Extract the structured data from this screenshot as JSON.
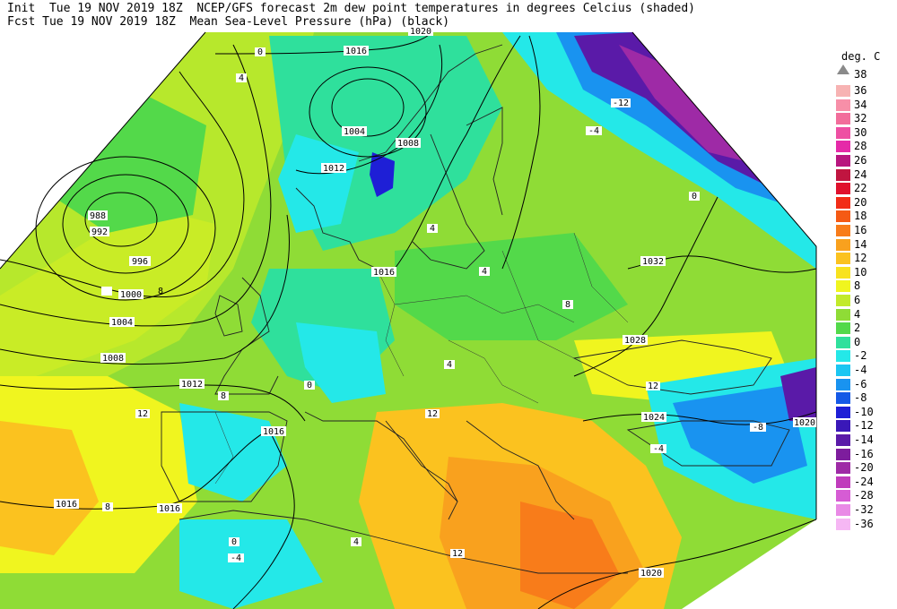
{
  "header": {
    "line1": "Init  Tue 19 NOV 2019 18Z  NCEP/GFS forecast 2m dew point temperatures in degrees Celcius (shaded)",
    "line2": "Fcst Tue 19 NOV 2019 18Z  Mean Sea-Level Pressure (hPa) (black)"
  },
  "legend": {
    "unit": "deg. C",
    "top_value": "38",
    "items": [
      {
        "label": "36",
        "color": "#f7b3b3"
      },
      {
        "label": "34",
        "color": "#f78fa8"
      },
      {
        "label": "32",
        "color": "#f26d9b"
      },
      {
        "label": "30",
        "color": "#ee4fa3"
      },
      {
        "label": "28",
        "color": "#e52aa8"
      },
      {
        "label": "26",
        "color": "#b8167f"
      },
      {
        "label": "24",
        "color": "#c01540"
      },
      {
        "label": "22",
        "color": "#e0112d"
      },
      {
        "label": "20",
        "color": "#f22d17"
      },
      {
        "label": "18",
        "color": "#f55a14"
      },
      {
        "label": "16",
        "color": "#f87c1a"
      },
      {
        "label": "14",
        "color": "#f9a11e"
      },
      {
        "label": "12",
        "color": "#fbc21f"
      },
      {
        "label": "10",
        "color": "#f8e21e"
      },
      {
        "label": "8",
        "color": "#f0f51f"
      },
      {
        "label": "6",
        "color": "#c2ea2a"
      },
      {
        "label": "4",
        "color": "#8fdc36"
      },
      {
        "label": "2",
        "color": "#53d94a"
      },
      {
        "label": "0",
        "color": "#2fe09c"
      },
      {
        "label": "-2",
        "color": "#24e8e8"
      },
      {
        "label": "-4",
        "color": "#1bc6f2"
      },
      {
        "label": "-6",
        "color": "#1993f0"
      },
      {
        "label": "-8",
        "color": "#1459e6"
      },
      {
        "label": "-10",
        "color": "#1e1fd6"
      },
      {
        "label": "-12",
        "color": "#3a18b8"
      },
      {
        "label": "-14",
        "color": "#5a1aa8"
      },
      {
        "label": "-16",
        "color": "#7d1d9d"
      },
      {
        "label": "-20",
        "color": "#9e2aa6"
      },
      {
        "label": "-24",
        "color": "#c03cbc"
      },
      {
        "label": "-28",
        "color": "#d65cd4"
      },
      {
        "label": "-32",
        "color": "#e98ae6"
      },
      {
        "label": "-36",
        "color": "#f6b7f4"
      }
    ]
  },
  "map": {
    "isobar_labels": [
      "1016",
      "1004",
      "1008",
      "1012",
      "1020",
      "988",
      "992",
      "996",
      "1000",
      "1004",
      "1008",
      "1012",
      "1016",
      "1016",
      "1016",
      "1028",
      "1024",
      "1032",
      "1020",
      "1020",
      "1016"
    ],
    "dewpoint_labels": [
      "0",
      "4",
      "-4",
      "-12",
      "0",
      "4",
      "8",
      "0",
      "4",
      "8",
      "12",
      "12",
      "-4",
      "-8",
      "4",
      "8",
      "12",
      "-4",
      "0",
      "8",
      "12",
      "4"
    ]
  }
}
